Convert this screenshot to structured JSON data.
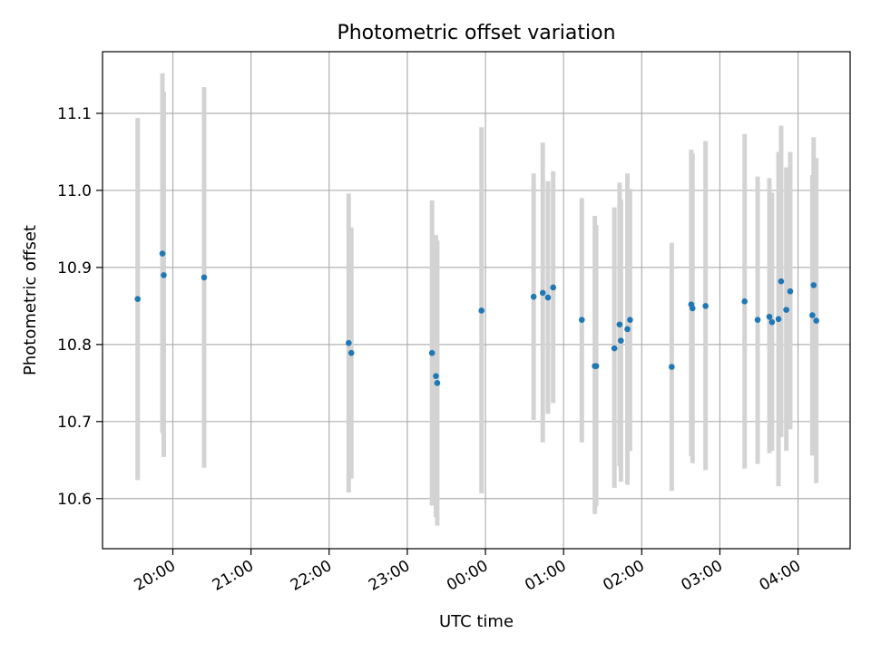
{
  "chart_data": {
    "type": "scatter",
    "title": "Photometric offset variation",
    "xlabel": "UTC time",
    "ylabel": "Photometric offset",
    "x_format": "HH:MM",
    "xlim": [
      "2000-01-01T19:06:00",
      "2000-01-02T04:40:00"
    ],
    "ylim": [
      10.535,
      11.18
    ],
    "x_ticks": [
      {
        "time": "2000-01-01T20:00:00",
        "label": "20:00"
      },
      {
        "time": "2000-01-01T21:00:00",
        "label": "21:00"
      },
      {
        "time": "2000-01-01T22:00:00",
        "label": "22:00"
      },
      {
        "time": "2000-01-01T23:00:00",
        "label": "23:00"
      },
      {
        "time": "2000-01-02T00:00:00",
        "label": "00:00"
      },
      {
        "time": "2000-01-02T01:00:00",
        "label": "01:00"
      },
      {
        "time": "2000-01-02T02:00:00",
        "label": "02:00"
      },
      {
        "time": "2000-01-02T03:00:00",
        "label": "03:00"
      },
      {
        "time": "2000-01-02T04:00:00",
        "label": "04:00"
      }
    ],
    "y_ticks": [
      {
        "value": 10.6,
        "label": "10.6"
      },
      {
        "value": 10.7,
        "label": "10.7"
      },
      {
        "value": 10.8,
        "label": "10.8"
      },
      {
        "value": 10.9,
        "label": "10.9"
      },
      {
        "value": 11.0,
        "label": "11.0"
      },
      {
        "value": 11.1,
        "label": "11.1"
      }
    ],
    "grid": true,
    "colors": {
      "points": "#1f77b4",
      "errorbars": "#d3d3d3",
      "grid": "#b0b0b0"
    },
    "points": [
      {
        "t": "2000-01-01T19:33:00",
        "y": 10.859,
        "lo": 10.624,
        "hi": 11.094
      },
      {
        "t": "2000-01-01T19:52:00",
        "y": 10.918,
        "lo": 10.685,
        "hi": 11.152
      },
      {
        "t": "2000-01-01T19:53:00",
        "y": 10.89,
        "lo": 10.654,
        "hi": 11.128
      },
      {
        "t": "2000-01-01T20:24:00",
        "y": 10.887,
        "lo": 10.64,
        "hi": 11.134
      },
      {
        "t": "2000-01-01T22:15:00",
        "y": 10.802,
        "lo": 10.608,
        "hi": 10.996
      },
      {
        "t": "2000-01-01T22:17:00",
        "y": 10.789,
        "lo": 10.626,
        "hi": 10.952
      },
      {
        "t": "2000-01-01T23:19:00",
        "y": 10.789,
        "lo": 10.591,
        "hi": 10.987
      },
      {
        "t": "2000-01-01T23:22:00",
        "y": 10.759,
        "lo": 10.576,
        "hi": 10.942
      },
      {
        "t": "2000-01-01T23:23:00",
        "y": 10.75,
        "lo": 10.565,
        "hi": 10.935
      },
      {
        "t": "2000-01-01T23:57:00",
        "y": 10.844,
        "lo": 10.607,
        "hi": 11.082
      },
      {
        "t": "2000-01-02T00:37:00",
        "y": 10.862,
        "lo": 10.702,
        "hi": 11.022
      },
      {
        "t": "2000-01-02T00:44:00",
        "y": 10.867,
        "lo": 10.673,
        "hi": 11.062
      },
      {
        "t": "2000-01-02T00:48:00",
        "y": 10.861,
        "lo": 10.71,
        "hi": 11.012
      },
      {
        "t": "2000-01-02T00:52:00",
        "y": 10.874,
        "lo": 10.724,
        "hi": 11.025
      },
      {
        "t": "2000-01-02T01:14:00",
        "y": 10.832,
        "lo": 10.673,
        "hi": 10.99
      },
      {
        "t": "2000-01-02T01:24:00",
        "y": 10.772,
        "lo": 10.58,
        "hi": 10.967
      },
      {
        "t": "2000-01-02T01:25:00",
        "y": 10.772,
        "lo": 10.59,
        "hi": 10.955
      },
      {
        "t": "2000-01-02T01:39:00",
        "y": 10.795,
        "lo": 10.614,
        "hi": 10.978
      },
      {
        "t": "2000-01-02T01:43:00",
        "y": 10.826,
        "lo": 10.642,
        "hi": 11.01
      },
      {
        "t": "2000-01-02T01:44:00",
        "y": 10.805,
        "lo": 10.622,
        "hi": 10.988
      },
      {
        "t": "2000-01-02T01:49:00",
        "y": 10.82,
        "lo": 10.618,
        "hi": 11.022
      },
      {
        "t": "2000-01-02T01:51:00",
        "y": 10.832,
        "lo": 10.662,
        "hi": 11.002
      },
      {
        "t": "2000-01-02T02:23:00",
        "y": 10.771,
        "lo": 10.61,
        "hi": 10.932
      },
      {
        "t": "2000-01-02T02:38:00",
        "y": 10.852,
        "lo": 10.655,
        "hi": 11.053
      },
      {
        "t": "2000-01-02T02:39:00",
        "y": 10.847,
        "lo": 10.646,
        "hi": 11.048
      },
      {
        "t": "2000-01-02T02:49:00",
        "y": 10.85,
        "lo": 10.637,
        "hi": 11.064
      },
      {
        "t": "2000-01-02T03:19:00",
        "y": 10.856,
        "lo": 10.639,
        "hi": 11.073
      },
      {
        "t": "2000-01-02T03:29:00",
        "y": 10.832,
        "lo": 10.645,
        "hi": 11.018
      },
      {
        "t": "2000-01-02T03:38:00",
        "y": 10.836,
        "lo": 10.659,
        "hi": 11.016
      },
      {
        "t": "2000-01-02T03:40:00",
        "y": 10.829,
        "lo": 10.662,
        "hi": 10.997
      },
      {
        "t": "2000-01-02T03:45:00",
        "y": 10.833,
        "lo": 10.616,
        "hi": 11.05
      },
      {
        "t": "2000-01-02T03:47:00",
        "y": 10.882,
        "lo": 10.68,
        "hi": 11.084
      },
      {
        "t": "2000-01-02T03:51:00",
        "y": 10.845,
        "lo": 10.662,
        "hi": 11.03
      },
      {
        "t": "2000-01-02T03:54:00",
        "y": 10.869,
        "lo": 10.69,
        "hi": 11.05
      },
      {
        "t": "2000-01-02T04:11:00",
        "y": 10.838,
        "lo": 10.656,
        "hi": 11.02
      },
      {
        "t": "2000-01-02T04:12:00",
        "y": 10.877,
        "lo": 10.686,
        "hi": 11.069
      },
      {
        "t": "2000-01-02T04:14:00",
        "y": 10.831,
        "lo": 10.62,
        "hi": 11.042
      }
    ]
  }
}
